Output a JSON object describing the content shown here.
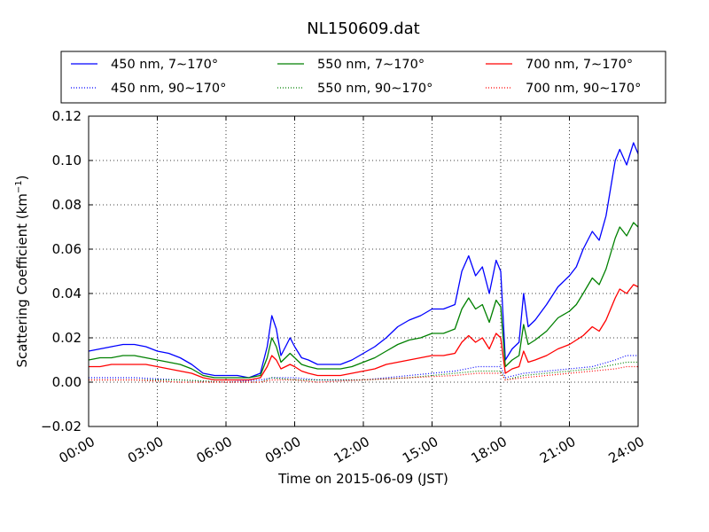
{
  "chart_data": {
    "type": "line",
    "title": "NL150609.dat",
    "xlabel": "Time on 2015-06-09 (JST)",
    "ylabel": "Scattering Coefficient (km",
    "ylabel_sup": "−1",
    "ylabel_end": ")",
    "xlim": [
      "00:00",
      "24:00"
    ],
    "ylim": [
      -0.02,
      0.12
    ],
    "x_ticks": [
      "00:00",
      "03:00",
      "06:00",
      "09:00",
      "12:00",
      "15:00",
      "18:00",
      "21:00",
      "24:00"
    ],
    "y_ticks": [
      -0.02,
      0.0,
      0.02,
      0.04,
      0.06,
      0.08,
      0.1,
      0.12
    ],
    "y_tick_labels": [
      "−0.02",
      "0.00",
      "0.02",
      "0.04",
      "0.06",
      "0.08",
      "0.10",
      "0.12"
    ],
    "grid": true,
    "legend_position": "top",
    "series": [
      {
        "name": "450 nm, 7∼170°",
        "color": "#0000ff",
        "style": "solid",
        "x": [
          0,
          0.5,
          1,
          1.5,
          2,
          2.5,
          3,
          3.5,
          4,
          4.5,
          5,
          5.5,
          6,
          6.5,
          7,
          7.5,
          7.8,
          8,
          8.2,
          8.4,
          8.6,
          8.8,
          9,
          9.3,
          9.6,
          10,
          10.5,
          11,
          11.5,
          12,
          12.5,
          13,
          13.5,
          14,
          14.5,
          15,
          15.5,
          16,
          16.3,
          16.6,
          16.9,
          17.2,
          17.5,
          17.8,
          18,
          18.2,
          18.5,
          18.8,
          19,
          19.2,
          19.5,
          20,
          20.5,
          21,
          21.3,
          21.6,
          22,
          22.3,
          22.6,
          23,
          23.2,
          23.5,
          23.8,
          24
        ],
        "y": [
          0.014,
          0.015,
          0.016,
          0.017,
          0.017,
          0.016,
          0.014,
          0.013,
          0.011,
          0.008,
          0.004,
          0.003,
          0.003,
          0.003,
          0.002,
          0.004,
          0.016,
          0.03,
          0.024,
          0.012,
          0.016,
          0.02,
          0.016,
          0.011,
          0.01,
          0.008,
          0.008,
          0.008,
          0.01,
          0.013,
          0.016,
          0.02,
          0.025,
          0.028,
          0.03,
          0.033,
          0.033,
          0.035,
          0.05,
          0.057,
          0.048,
          0.052,
          0.04,
          0.055,
          0.05,
          0.01,
          0.015,
          0.018,
          0.04,
          0.025,
          0.028,
          0.035,
          0.043,
          0.048,
          0.052,
          0.06,
          0.068,
          0.064,
          0.075,
          0.1,
          0.105,
          0.098,
          0.108,
          0.103
        ]
      },
      {
        "name": "550 nm, 7∼170°",
        "color": "#008000",
        "style": "solid",
        "x": [
          0,
          0.5,
          1,
          1.5,
          2,
          2.5,
          3,
          3.5,
          4,
          4.5,
          5,
          5.5,
          6,
          6.5,
          7,
          7.5,
          7.8,
          8,
          8.2,
          8.4,
          8.6,
          8.8,
          9,
          9.3,
          9.6,
          10,
          10.5,
          11,
          11.5,
          12,
          12.5,
          13,
          13.5,
          14,
          14.5,
          15,
          15.5,
          16,
          16.3,
          16.6,
          16.9,
          17.2,
          17.5,
          17.8,
          18,
          18.2,
          18.5,
          18.8,
          19,
          19.2,
          19.5,
          20,
          20.5,
          21,
          21.3,
          21.6,
          22,
          22.3,
          22.6,
          23,
          23.2,
          23.5,
          23.8,
          24
        ],
        "y": [
          0.01,
          0.011,
          0.011,
          0.012,
          0.012,
          0.011,
          0.01,
          0.009,
          0.008,
          0.006,
          0.003,
          0.002,
          0.002,
          0.002,
          0.002,
          0.003,
          0.011,
          0.02,
          0.016,
          0.009,
          0.011,
          0.013,
          0.011,
          0.008,
          0.007,
          0.006,
          0.006,
          0.006,
          0.007,
          0.009,
          0.011,
          0.014,
          0.017,
          0.019,
          0.02,
          0.022,
          0.022,
          0.024,
          0.033,
          0.038,
          0.033,
          0.035,
          0.027,
          0.037,
          0.034,
          0.007,
          0.01,
          0.012,
          0.026,
          0.017,
          0.019,
          0.023,
          0.029,
          0.032,
          0.035,
          0.04,
          0.047,
          0.044,
          0.051,
          0.065,
          0.07,
          0.066,
          0.072,
          0.07
        ]
      },
      {
        "name": "700 nm, 7∼170°",
        "color": "#ff0000",
        "style": "solid",
        "x": [
          0,
          0.5,
          1,
          1.5,
          2,
          2.5,
          3,
          3.5,
          4,
          4.5,
          5,
          5.5,
          6,
          6.5,
          7,
          7.5,
          7.8,
          8,
          8.2,
          8.4,
          8.6,
          8.8,
          9,
          9.3,
          9.6,
          10,
          10.5,
          11,
          11.5,
          12,
          12.5,
          13,
          13.5,
          14,
          14.5,
          15,
          15.5,
          16,
          16.3,
          16.6,
          16.9,
          17.2,
          17.5,
          17.8,
          18,
          18.2,
          18.5,
          18.8,
          19,
          19.2,
          19.5,
          20,
          20.5,
          21,
          21.3,
          21.6,
          22,
          22.3,
          22.6,
          23,
          23.2,
          23.5,
          23.8,
          24
        ],
        "y": [
          0.007,
          0.007,
          0.008,
          0.008,
          0.008,
          0.008,
          0.007,
          0.006,
          0.005,
          0.004,
          0.002,
          0.001,
          0.001,
          0.001,
          0.001,
          0.002,
          0.007,
          0.012,
          0.01,
          0.006,
          0.007,
          0.008,
          0.007,
          0.005,
          0.004,
          0.003,
          0.003,
          0.003,
          0.004,
          0.005,
          0.006,
          0.008,
          0.009,
          0.01,
          0.011,
          0.012,
          0.012,
          0.013,
          0.018,
          0.021,
          0.018,
          0.02,
          0.015,
          0.022,
          0.02,
          0.004,
          0.006,
          0.007,
          0.014,
          0.009,
          0.01,
          0.012,
          0.015,
          0.017,
          0.019,
          0.021,
          0.025,
          0.023,
          0.028,
          0.038,
          0.042,
          0.04,
          0.044,
          0.043
        ]
      },
      {
        "name": "450 nm, 90∼170°",
        "color": "#0000ff",
        "style": "dotted",
        "x": [
          0,
          2,
          4,
          6,
          7.5,
          8,
          9,
          10,
          12,
          14,
          16,
          17,
          18,
          18.2,
          19,
          20,
          21,
          22,
          23,
          23.5,
          24
        ],
        "y": [
          0.002,
          0.002,
          0.001,
          0.0,
          0.001,
          0.002,
          0.002,
          0.001,
          0.001,
          0.003,
          0.005,
          0.007,
          0.007,
          0.002,
          0.004,
          0.005,
          0.006,
          0.007,
          0.01,
          0.012,
          0.012
        ]
      },
      {
        "name": "550 nm, 90∼170°",
        "color": "#008000",
        "style": "dotted",
        "x": [
          0,
          2,
          4,
          6,
          7.5,
          8,
          9,
          10,
          12,
          14,
          16,
          17,
          18,
          18.2,
          19,
          20,
          21,
          22,
          23,
          23.5,
          24
        ],
        "y": [
          0.001,
          0.001,
          0.001,
          0.0,
          0.0,
          0.002,
          0.001,
          0.001,
          0.001,
          0.002,
          0.004,
          0.005,
          0.005,
          0.001,
          0.003,
          0.004,
          0.005,
          0.006,
          0.008,
          0.009,
          0.009
        ]
      },
      {
        "name": "700 nm, 90∼170°",
        "color": "#ff0000",
        "style": "dotted",
        "x": [
          0,
          2,
          4,
          6,
          7.5,
          8,
          9,
          10,
          12,
          14,
          16,
          17,
          18,
          18.2,
          19,
          20,
          21,
          22,
          23,
          23.5,
          24
        ],
        "y": [
          0.001,
          0.001,
          0.0,
          0.0,
          0.0,
          0.001,
          0.001,
          0.0,
          0.001,
          0.002,
          0.003,
          0.004,
          0.004,
          0.001,
          0.002,
          0.003,
          0.004,
          0.005,
          0.006,
          0.007,
          0.007
        ]
      }
    ]
  }
}
